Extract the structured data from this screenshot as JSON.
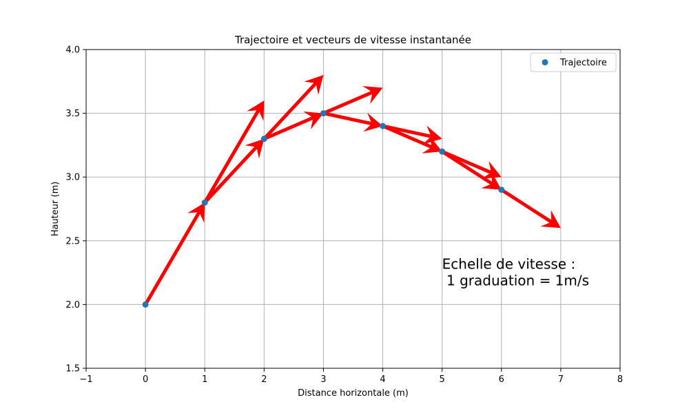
{
  "chart_data": {
    "type": "scatter",
    "title": "Trajectoire et vecteurs de vitesse instantanée",
    "xlabel": "Distance horizontale (m)",
    "ylabel": "Hauteur (m)",
    "xlim": [
      -1,
      8
    ],
    "ylim": [
      1.5,
      4.0
    ],
    "xticks": [
      -1,
      0,
      1,
      2,
      3,
      4,
      5,
      6,
      7,
      8
    ],
    "yticks": [
      1.5,
      2.0,
      2.5,
      3.0,
      3.5,
      4.0
    ],
    "xtick_labels": [
      "−1",
      "0",
      "1",
      "2",
      "3",
      "4",
      "5",
      "6",
      "7",
      "8"
    ],
    "ytick_labels": [
      "1.5",
      "2.0",
      "2.5",
      "3.0",
      "3.5",
      "4.0"
    ],
    "grid": true,
    "legend_position": "top-right",
    "series": [
      {
        "name": "Trajectoire",
        "color": "#1f77b4",
        "x": [
          0,
          1,
          2,
          3,
          4,
          5,
          6
        ],
        "y": [
          2.0,
          2.8,
          3.3,
          3.5,
          3.4,
          3.2,
          2.9
        ]
      }
    ],
    "velocity_vectors": {
      "color": "#ff0000",
      "vectors": [
        {
          "x": 0,
          "y": 2.0,
          "dx": 1.0,
          "dy": 0.8
        },
        {
          "x": 1,
          "y": 2.8,
          "dx": 1.0,
          "dy": 0.8
        },
        {
          "x": 1,
          "y": 2.8,
          "dx": 1.0,
          "dy": 0.5
        },
        {
          "x": 2,
          "y": 3.3,
          "dx": 1.0,
          "dy": 0.5
        },
        {
          "x": 2,
          "y": 3.3,
          "dx": 1.0,
          "dy": 0.2
        },
        {
          "x": 3,
          "y": 3.5,
          "dx": 1.0,
          "dy": 0.2
        },
        {
          "x": 3,
          "y": 3.5,
          "dx": 1.0,
          "dy": -0.1
        },
        {
          "x": 4,
          "y": 3.4,
          "dx": 1.0,
          "dy": -0.1
        },
        {
          "x": 4,
          "y": 3.4,
          "dx": 1.0,
          "dy": -0.2
        },
        {
          "x": 5,
          "y": 3.2,
          "dx": 1.0,
          "dy": -0.2
        },
        {
          "x": 5,
          "y": 3.2,
          "dx": 1.0,
          "dy": -0.3
        },
        {
          "x": 6,
          "y": 2.9,
          "dx": 1.0,
          "dy": -0.3
        }
      ]
    },
    "annotation": {
      "x": 5.0,
      "y": 2.15,
      "lines": [
        "Echelle de vitesse :",
        " 1 graduation = 1m/s"
      ]
    }
  }
}
